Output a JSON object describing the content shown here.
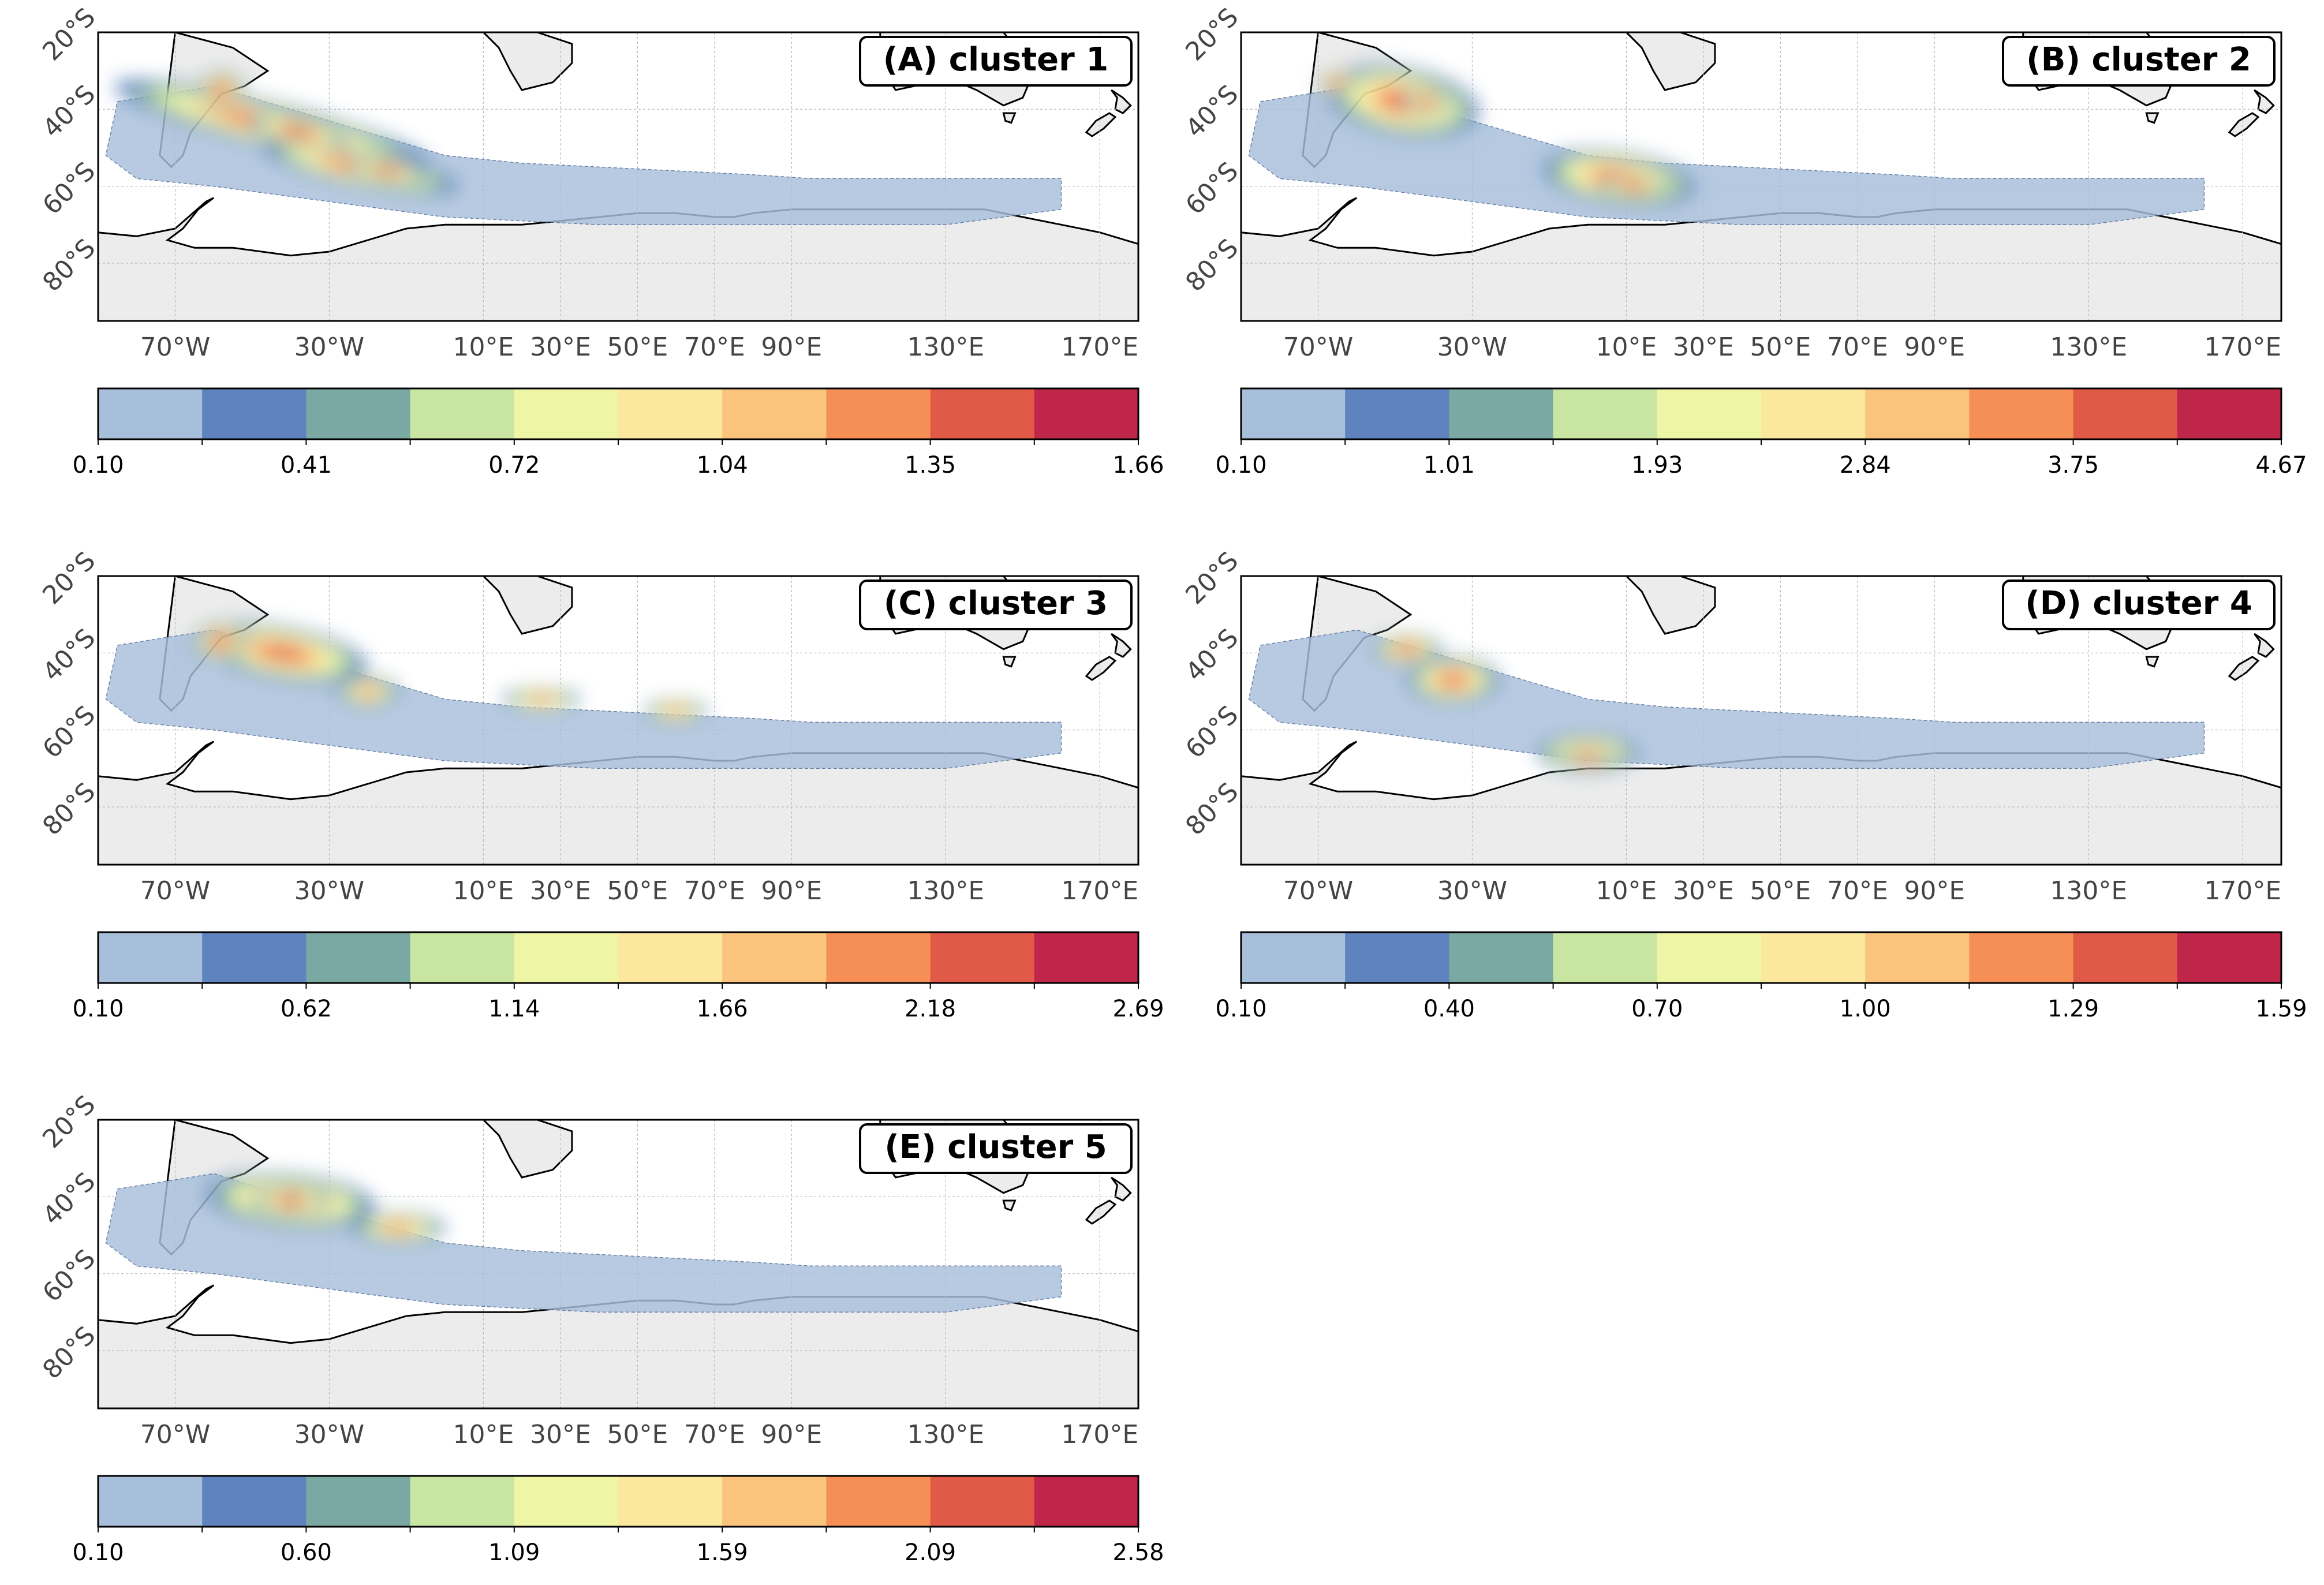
{
  "figure": {
    "panels": [
      {
        "label": "(A) cluster 1",
        "colorbar_ticks": [
          "0.10",
          "0.41",
          "0.72",
          "1.04",
          "1.35",
          "1.66"
        ],
        "blobs": [
          {
            "lon": -45,
            "lat": -44,
            "rx": 42,
            "ry": 6,
            "rot": 14,
            "level": 8
          },
          {
            "lon": -22,
            "lat": -55,
            "rx": 26,
            "ry": 5,
            "rot": 12,
            "level": 8
          },
          {
            "lon": -58,
            "lat": -35,
            "rx": 6,
            "ry": 5,
            "rot": 0,
            "level": 9
          },
          {
            "lon": -38,
            "lat": -46,
            "rx": 13,
            "ry": 4,
            "rot": 15,
            "level": 9
          },
          {
            "lon": -15,
            "lat": -56,
            "rx": 10,
            "ry": 3,
            "rot": 10,
            "level": 9
          }
        ]
      },
      {
        "label": "(B) cluster 2",
        "colorbar_ticks": [
          "0.10",
          "1.01",
          "1.93",
          "2.84",
          "3.75",
          "4.67"
        ],
        "blobs": [
          {
            "lon": -48,
            "lat": -38,
            "rx": 20,
            "ry": 9,
            "rot": 10,
            "level": 8
          },
          {
            "lon": 8,
            "lat": -58,
            "rx": 20,
            "ry": 7,
            "rot": 8,
            "level": 8
          },
          {
            "lon": -42,
            "lat": -38,
            "rx": 6,
            "ry": 4,
            "rot": 0,
            "level": 9
          },
          {
            "lon": -65,
            "lat": -33,
            "rx": 5,
            "ry": 3,
            "rot": 0,
            "level": 9
          },
          {
            "lon": 12,
            "lat": -60,
            "rx": 9,
            "ry": 3,
            "rot": 0,
            "level": 9
          }
        ]
      },
      {
        "label": "(C) cluster 3",
        "colorbar_ticks": [
          "0.10",
          "0.62",
          "1.14",
          "1.66",
          "2.18",
          "2.69"
        ],
        "blobs": [
          {
            "lon": -42,
            "lat": -40,
            "rx": 22,
            "ry": 7,
            "rot": 10,
            "level": 8
          },
          {
            "lon": -58,
            "lat": -37,
            "rx": 7,
            "ry": 5,
            "rot": 0,
            "level": 9
          },
          {
            "lon": -20,
            "lat": -50,
            "rx": 8,
            "ry": 4,
            "rot": 0,
            "level": 7
          },
          {
            "lon": 25,
            "lat": -52,
            "rx": 10,
            "ry": 3,
            "rot": 0,
            "level": 7
          },
          {
            "lon": 60,
            "lat": -55,
            "rx": 8,
            "ry": 3,
            "rot": 0,
            "level": 7
          }
        ]
      },
      {
        "label": "(D) cluster 4",
        "colorbar_ticks": [
          "0.10",
          "0.40",
          "0.70",
          "1.00",
          "1.29",
          "1.59"
        ],
        "blobs": [
          {
            "lon": -35,
            "lat": -47,
            "rx": 12,
            "ry": 6,
            "rot": 0,
            "level": 8
          },
          {
            "lon": -47,
            "lat": -39,
            "rx": 9,
            "ry": 4,
            "rot": 0,
            "level": 8
          },
          {
            "lon": 0,
            "lat": -66,
            "rx": 13,
            "ry": 5,
            "rot": 0,
            "level": 8
          },
          {
            "lon": 0,
            "lat": -67,
            "rx": 7,
            "ry": 3,
            "rot": 0,
            "level": 9
          }
        ]
      },
      {
        "label": "(E) cluster 5",
        "colorbar_ticks": [
          "0.10",
          "0.60",
          "1.09",
          "1.59",
          "2.09",
          "2.58"
        ],
        "blobs": [
          {
            "lon": -40,
            "lat": -41,
            "rx": 22,
            "ry": 7,
            "rot": 5,
            "level": 8
          },
          {
            "lon": -40,
            "lat": -41,
            "rx": 10,
            "ry": 4,
            "rot": 0,
            "level": 9
          },
          {
            "lon": -12,
            "lat": -48,
            "rx": 12,
            "ry": 4,
            "rot": 0,
            "level": 7
          }
        ]
      }
    ],
    "longitude_ticks": [
      {
        "label": "70°W",
        "lon": -70
      },
      {
        "label": "30°W",
        "lon": -30
      },
      {
        "label": "10°E",
        "lon": 10
      },
      {
        "label": "30°E",
        "lon": 30
      },
      {
        "label": "50°E",
        "lon": 50
      },
      {
        "label": "70°E",
        "lon": 70
      },
      {
        "label": "90°E",
        "lon": 90
      },
      {
        "label": "130°E",
        "lon": 130
      },
      {
        "label": "170°E",
        "lon": 170
      }
    ],
    "latitude_ticks": [
      {
        "label": "20°S",
        "lat": -20
      },
      {
        "label": "40°S",
        "lat": -40
      },
      {
        "label": "60°S",
        "lat": -60
      },
      {
        "label": "80°S",
        "lat": -80
      }
    ],
    "extent": {
      "lon_min": -90,
      "lon_max": 180,
      "lat_min": -95,
      "lat_max": -20
    },
    "colors": {
      "levels": [
        "#a8bfdb",
        "#5e83be",
        "#7aa8a3",
        "#c8e6a2",
        "#eef6a6",
        "#fbe79e",
        "#fbc47d",
        "#f68f55",
        "#e15a48",
        "#c0254a"
      ],
      "land": "#ececec",
      "coast": "#000000",
      "grid": "#b8b8b8"
    }
  }
}
